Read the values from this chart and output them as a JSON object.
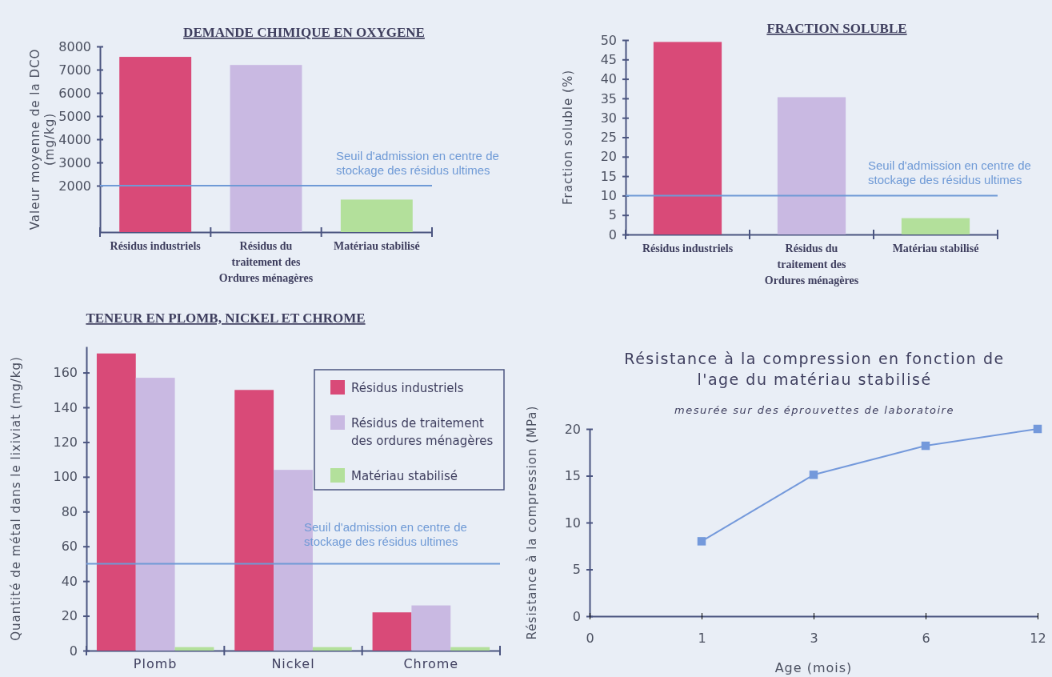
{
  "chart_data": [
    {
      "type": "bar",
      "title": "DEMANDE CHIMIQUE EN OXYGENE",
      "ylabel": "Valeur moyenne de la DCO (mg/kg)",
      "categories": [
        "Résidus industriels",
        "Résidus du traitement des Ordures ménagères",
        "Matériau stabilisé"
      ],
      "values": [
        7550,
        7200,
        1400
      ],
      "colors": [
        "#d94a78",
        "#c9b9e2",
        "#b3e09b"
      ],
      "ylim": [
        0,
        8000
      ],
      "yticks": [
        2000,
        3000,
        4000,
        5000,
        6000,
        7000,
        8000
      ],
      "ref_lines": [
        {
          "axis": "y",
          "value": 2000,
          "label": "Seuil d'admission en centre de stockage des résidus ultimes",
          "color": "#6f9ad6"
        }
      ]
    },
    {
      "type": "bar",
      "title": "FRACTION SOLUBLE",
      "ylabel": "Fraction soluble (%)",
      "categories": [
        "Résidus industriels",
        "Résidus du traitement des Ordures ménagères",
        "Matériau stabilisé"
      ],
      "values": [
        49.5,
        35.3,
        4.2
      ],
      "colors": [
        "#d94a78",
        "#c9b9e2",
        "#b3e09b"
      ],
      "ylim": [
        0,
        50
      ],
      "yticks": [
        0,
        5,
        10,
        15,
        20,
        25,
        30,
        35,
        40,
        45,
        50
      ],
      "ref_lines": [
        {
          "axis": "y",
          "value": 10,
          "label": "Seuil d'admission en centre de stockage des résidus ultimes",
          "color": "#6f9ad6"
        }
      ]
    },
    {
      "type": "bar",
      "title": "TENEUR EN PLOMB, NICKEL ET CHROME",
      "ylabel": "Quantité de métal dans le lixiviat (mg/kg)",
      "categories": [
        "Plomb",
        "Nickel",
        "Chrome"
      ],
      "series": [
        {
          "name": "Résidus industriels",
          "color": "#d94a78",
          "values": [
            171,
            150,
            22
          ]
        },
        {
          "name": "Résidus de traitement des ordures ménagères",
          "color": "#c9b9e2",
          "values": [
            157,
            104,
            26
          ]
        },
        {
          "name": "Matériau stabilisé",
          "color": "#b3e09b",
          "values": [
            2,
            2,
            2
          ]
        }
      ],
      "legend": "top right",
      "ylim": [
        0,
        175
      ],
      "yticks": [
        0,
        20,
        40,
        60,
        80,
        100,
        120,
        140,
        160
      ],
      "ref_lines": [
        {
          "axis": "y",
          "value": 50,
          "label": "Seuil d'admission en centre de stockage des résidus ultimes",
          "color": "#6f9ad6"
        }
      ]
    },
    {
      "type": "line",
      "title": "Résistance à la compression en fonction de l'age du matériau stabilisé",
      "subtitle": "mesurée sur des éprouvettes de laboratoire",
      "xlabel": "Age (mois)",
      "ylabel": "Résistance à la compression (MPa)",
      "categories": [
        "0",
        "1",
        "3",
        "6",
        "12"
      ],
      "values": [
        null,
        8,
        15.1,
        18.2,
        20
      ],
      "color": "#7499db",
      "marker": "square",
      "ylim": [
        0,
        20
      ],
      "yticks": [
        0,
        5,
        10,
        15,
        20
      ]
    }
  ]
}
